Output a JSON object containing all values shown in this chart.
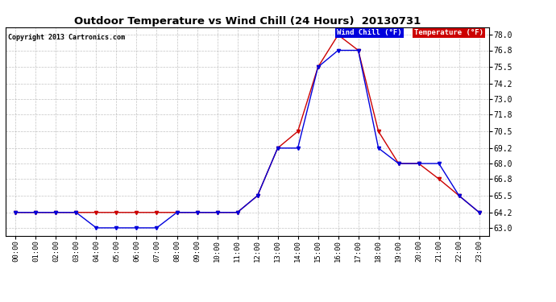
{
  "title": "Outdoor Temperature vs Wind Chill (24 Hours)  20130731",
  "copyright": "Copyright 2013 Cartronics.com",
  "legend_wind_chill": "Wind Chill (°F)",
  "legend_temperature": "Temperature (°F)",
  "background_color": "#ffffff",
  "plot_bg_color": "#ffffff",
  "grid_color": "#aaaaaa",
  "wind_chill_color": "#0000dd",
  "temperature_color": "#cc0000",
  "x_labels": [
    "00:00",
    "01:00",
    "02:00",
    "03:00",
    "04:00",
    "05:00",
    "06:00",
    "07:00",
    "08:00",
    "09:00",
    "10:00",
    "11:00",
    "12:00",
    "13:00",
    "14:00",
    "15:00",
    "16:00",
    "17:00",
    "18:00",
    "19:00",
    "20:00",
    "21:00",
    "22:00",
    "23:00"
  ],
  "y_ticks": [
    63.0,
    64.2,
    65.5,
    66.8,
    68.0,
    69.2,
    70.5,
    71.8,
    73.0,
    74.2,
    75.5,
    76.8,
    78.0
  ],
  "ylim": [
    62.4,
    78.6
  ],
  "temperature": [
    64.2,
    64.2,
    64.2,
    64.2,
    64.2,
    64.2,
    64.2,
    64.2,
    64.2,
    64.2,
    64.2,
    64.2,
    65.5,
    69.2,
    70.5,
    75.5,
    78.0,
    76.8,
    70.5,
    68.0,
    68.0,
    66.8,
    65.5,
    64.2
  ],
  "wind_chill": [
    64.2,
    64.2,
    64.2,
    64.2,
    63.0,
    63.0,
    63.0,
    63.0,
    64.2,
    64.2,
    64.2,
    64.2,
    65.5,
    69.2,
    69.2,
    75.5,
    76.8,
    76.8,
    69.2,
    68.0,
    68.0,
    68.0,
    65.5,
    64.2
  ]
}
